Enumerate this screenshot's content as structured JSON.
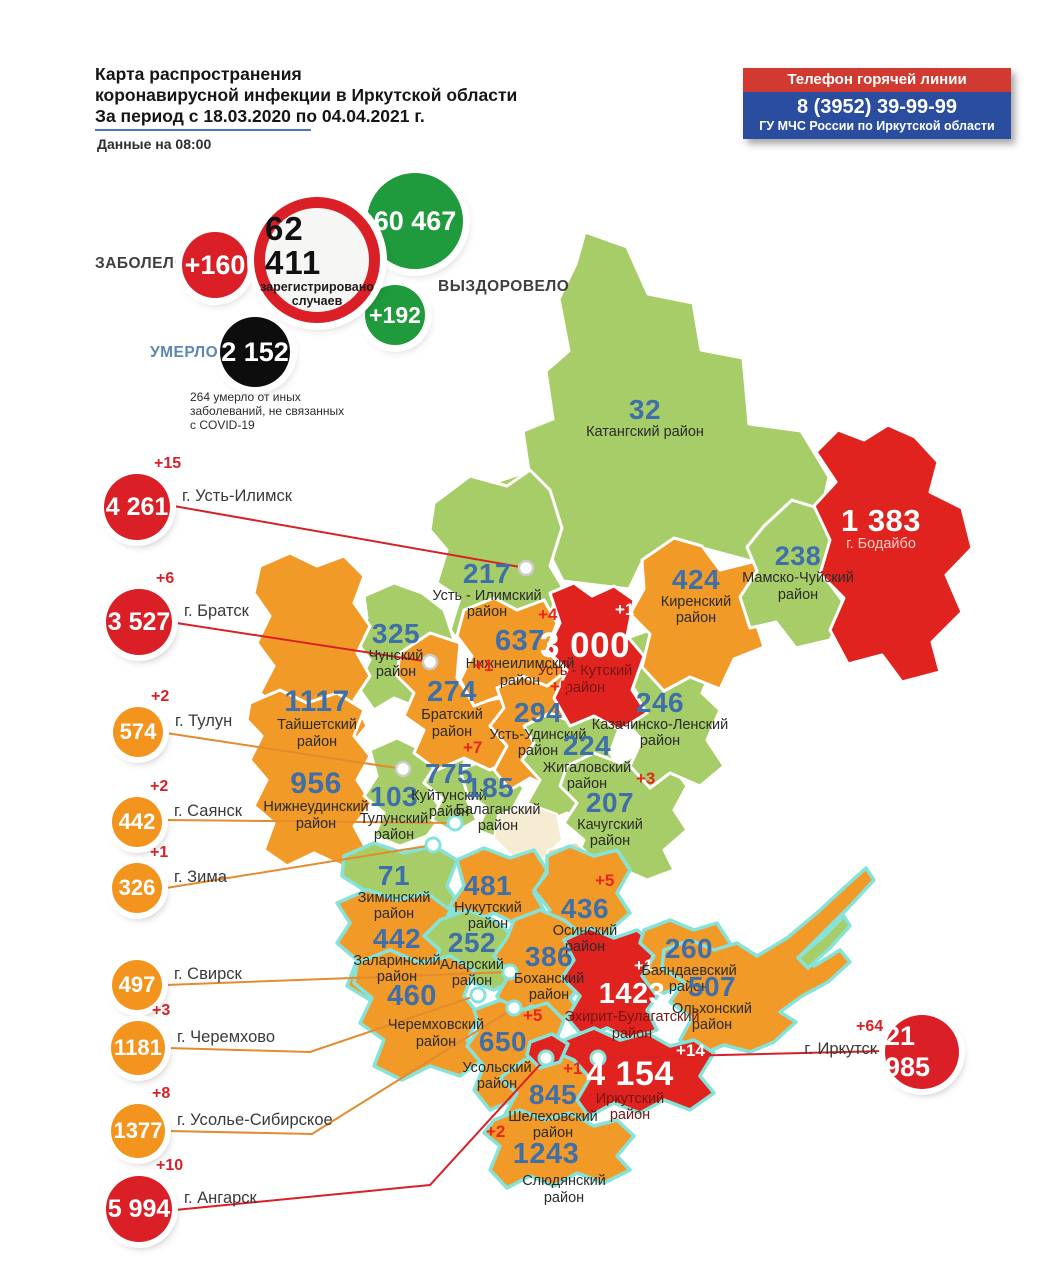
{
  "header": {
    "title_lines": [
      "Карта распространения",
      "коронавирусной инфекции в Иркутской области",
      "За период с 18.03.2020 по 04.04.2021 г."
    ],
    "subtitle": "Данные на 08:00",
    "hotline": {
      "title": "Телефон горячей линии",
      "phone": "8 (3952) 39-99-99",
      "org": "ГУ МЧС России по Иркутской области"
    }
  },
  "stats": {
    "sick_label": "ЗАБОЛЕЛО",
    "sick_delta": "+160",
    "total": "62 411",
    "total_sub_lines": [
      "зарегистрировано",
      "случаев"
    ],
    "recovered": "60 467",
    "recovered_delta": "+192",
    "recovered_label": "ВЫЗДОРОВЕЛО",
    "died_label": "УМЕРЛО",
    "died": "2 152",
    "note_lines": [
      "264  умерло от иных",
      "заболеваний, не связанных",
      "с COVID-19"
    ]
  },
  "palette": {
    "green": "#a6cd68",
    "orange": "#f19a28",
    "red": "#e0231f",
    "number_blue": "#3f6fa8",
    "delta_red": "#e8251f",
    "white": "#ffffff",
    "red_region_name": "#731713",
    "bodaibo_name": "#f6cfc9",
    "cyan_border": "#86e3da"
  },
  "map": {
    "regions": [
      {
        "id": "katangsky",
        "value": "32",
        "delta": null,
        "name_lines": [
          "Катангский район"
        ],
        "level": "green"
      },
      {
        "id": "bodaibo",
        "value": "1 383",
        "delta": null,
        "name_lines": [
          "г. Бодайбо"
        ],
        "level": "red"
      },
      {
        "id": "mamsko",
        "value": "238",
        "delta": null,
        "name_lines": [
          "Мамско-Чуйский",
          "район"
        ],
        "level": "green"
      },
      {
        "id": "kirensky",
        "value": "424",
        "delta": null,
        "name_lines": [
          "Киренский",
          "район"
        ],
        "level": "orange"
      },
      {
        "id": "ust_ilimsky",
        "value": "217",
        "delta": null,
        "name_lines": [
          "Усть - Илимский",
          "район"
        ],
        "level": "green"
      },
      {
        "id": "ust_kutsky",
        "value": "3 000",
        "delta": "+1",
        "name_lines": [
          "Усть - Кутский",
          "район"
        ],
        "level": "red"
      },
      {
        "id": "nizhneilimsky",
        "value": "637",
        "delta": "+4",
        "name_lines": [
          "Нижнеилимский",
          "район"
        ],
        "level": "orange"
      },
      {
        "id": "kazachinsko",
        "value": "246",
        "delta": null,
        "name_lines": [
          "Казачинско-Ленский",
          "район"
        ],
        "level": "green"
      },
      {
        "id": "chunsky",
        "value": "325",
        "delta": null,
        "name_lines": [
          "Чунский",
          "район"
        ],
        "level": "green"
      },
      {
        "id": "taishetsky",
        "value": "1117",
        "delta": null,
        "name_lines": [
          "Тайшетский",
          "район"
        ],
        "level": "orange"
      },
      {
        "id": "bratsky",
        "value": "274",
        "delta": "+1",
        "name_lines": [
          "Братский",
          "район"
        ],
        "level": "orange"
      },
      {
        "id": "ust_udinsky",
        "value": "294",
        "delta": "+5",
        "name_lines": [
          "Усть-Удинский",
          "район"
        ],
        "level": "orange"
      },
      {
        "id": "zhigalovsky",
        "value": "224",
        "delta": null,
        "name_lines": [
          "Жигаловский",
          "район"
        ],
        "level": "green"
      },
      {
        "id": "kachugsky",
        "value": "207",
        "delta": "+3",
        "name_lines": [
          "Качугский",
          "район"
        ],
        "level": "green"
      },
      {
        "id": "nizhneudinsky",
        "value": "956",
        "delta": null,
        "name_lines": [
          "Нижнеудинский",
          "район"
        ],
        "level": "orange"
      },
      {
        "id": "tulunsky",
        "value": "103",
        "delta": null,
        "name_lines": [
          "Тулунский",
          "район"
        ],
        "level": "green"
      },
      {
        "id": "kuitunsky",
        "value": "775",
        "delta": "+7",
        "name_lines": [
          "Куйтунский",
          "район"
        ],
        "level": "green"
      },
      {
        "id": "balagansky",
        "value": "185",
        "delta": null,
        "name_lines": [
          "Балаганский",
          "район"
        ],
        "level": "green"
      },
      {
        "id": "ziminsky",
        "value": "71",
        "delta": null,
        "name_lines": [
          "Зиминский",
          "район"
        ],
        "level": "green"
      },
      {
        "id": "nukutsky",
        "value": "481",
        "delta": null,
        "name_lines": [
          "Нукутский",
          "район"
        ],
        "level": "orange"
      },
      {
        "id": "osinsky",
        "value": "436",
        "delta": "+5",
        "name_lines": [
          "Осинский",
          "район"
        ],
        "level": "orange"
      },
      {
        "id": "zalarinsky",
        "value": "442",
        "delta": null,
        "name_lines": [
          "Заларинский",
          "район"
        ],
        "level": "orange"
      },
      {
        "id": "alarsky",
        "value": "252",
        "delta": null,
        "name_lines": [
          "Аларский",
          "район"
        ],
        "level": "green"
      },
      {
        "id": "bokhansky",
        "value": "386",
        "delta": null,
        "name_lines": [
          "Боханский",
          "район"
        ],
        "level": "orange"
      },
      {
        "id": "cheremkhovsky",
        "value": "460",
        "delta": null,
        "name_lines": [
          "Черемховский",
          "район"
        ],
        "level": "orange"
      },
      {
        "id": "usolsky",
        "value": "650",
        "delta": "+5",
        "name_lines": [
          "Усольский",
          "район"
        ],
        "level": "orange"
      },
      {
        "id": "ekhirit",
        "value": "1423",
        "delta": "+1",
        "name_lines": [
          "Эхирит-Булагатский",
          "район"
        ],
        "level": "red"
      },
      {
        "id": "bayandaevsky",
        "value": "260",
        "delta": null,
        "name_lines": [
          "Баяндаевский",
          "район"
        ],
        "level": "orange"
      },
      {
        "id": "olkhonsky",
        "value": "507",
        "delta": null,
        "name_lines": [
          "Ольхонский",
          "район"
        ],
        "level": "orange"
      },
      {
        "id": "irkutsky",
        "value": "4 154",
        "delta": "+14",
        "name_lines": [
          "Иркутский",
          "район"
        ],
        "level": "red"
      },
      {
        "id": "shelekhovsky",
        "value": "845",
        "delta": "+1",
        "name_lines": [
          "Шелеховский",
          "район"
        ],
        "level": "orange"
      },
      {
        "id": "slyudyansky",
        "value": "1243",
        "delta": "+2",
        "name_lines": [
          "Слюдянский",
          "район"
        ],
        "level": "orange"
      }
    ]
  },
  "cities": [
    {
      "id": "ust_ilimsk",
      "value": "4 261",
      "delta": "+15",
      "label": "г. Усть-Илимск",
      "level": "red"
    },
    {
      "id": "bratsk",
      "value": "3 527",
      "delta": "+6",
      "label": "г. Братск",
      "level": "red"
    },
    {
      "id": "tulun",
      "value": "574",
      "delta": "+2",
      "label": "г. Тулун",
      "level": "orange"
    },
    {
      "id": "sayansk",
      "value": "442",
      "delta": "+2",
      "label": "г. Саянск",
      "level": "orange"
    },
    {
      "id": "zima",
      "value": "326",
      "delta": "+1",
      "label": "г. Зима",
      "level": "orange"
    },
    {
      "id": "svirsk",
      "value": "497",
      "delta": null,
      "label": "г. Свирск",
      "level": "orange"
    },
    {
      "id": "cheremkhovo",
      "value": "1181",
      "delta": "+3",
      "label": "г. Черемхово",
      "level": "orange"
    },
    {
      "id": "usolye",
      "value": "1377",
      "delta": "+8",
      "label": "г. Усолье-Сибирское",
      "level": "orange"
    },
    {
      "id": "angarsk",
      "value": "5 994",
      "delta": "+10",
      "label": "г. Ангарск",
      "level": "red"
    },
    {
      "id": "irkutsk",
      "value": "21 985",
      "delta": "+64",
      "label": "г. Иркутск",
      "level": "red"
    }
  ]
}
